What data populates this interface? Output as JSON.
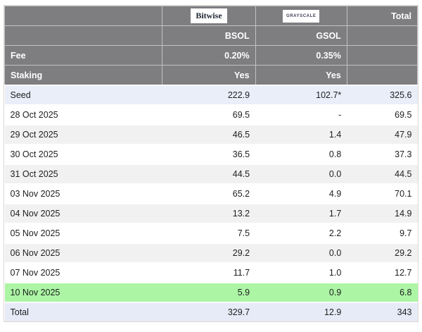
{
  "chart_data": {
    "type": "table",
    "total_column_label": "Total",
    "issuers": [
      {
        "name": "Bitwise",
        "ticker": "BSOL",
        "fee": "0.20%",
        "staking": "Yes"
      },
      {
        "name": "GRAYSCALE",
        "ticker": "GSOL",
        "fee": "0.35%",
        "staking": "Yes"
      }
    ],
    "meta_row_labels": {
      "fee": "Fee",
      "staking": "Staking"
    },
    "columns": [
      "",
      "BSOL",
      "GSOL",
      "Total"
    ],
    "rows": [
      {
        "label": "Seed",
        "bsol": "222.9",
        "gsol": "102.7*",
        "total": "325.6",
        "style": "seed"
      },
      {
        "label": "28 Oct 2025",
        "bsol": "69.5",
        "gsol": "-",
        "total": "69.5",
        "style": "white"
      },
      {
        "label": "29 Oct 2025",
        "bsol": "46.5",
        "gsol": "1.4",
        "total": "47.9",
        "style": "stripe"
      },
      {
        "label": "30 Oct 2025",
        "bsol": "36.5",
        "gsol": "0.8",
        "total": "37.3",
        "style": "white"
      },
      {
        "label": "31 Oct 2025",
        "bsol": "44.5",
        "gsol": "0.0",
        "total": "44.5",
        "style": "stripe"
      },
      {
        "label": "03 Nov 2025",
        "bsol": "65.2",
        "gsol": "4.9",
        "total": "70.1",
        "style": "white"
      },
      {
        "label": "04 Nov 2025",
        "bsol": "13.2",
        "gsol": "1.7",
        "total": "14.9",
        "style": "stripe"
      },
      {
        "label": "05 Nov 2025",
        "bsol": "7.5",
        "gsol": "2.2",
        "total": "9.7",
        "style": "white"
      },
      {
        "label": "06 Nov 2025",
        "bsol": "29.2",
        "gsol": "0.0",
        "total": "29.2",
        "style": "stripe"
      },
      {
        "label": "07 Nov 2025",
        "bsol": "11.7",
        "gsol": "1.0",
        "total": "12.7",
        "style": "white"
      },
      {
        "label": "10 Nov 2025",
        "bsol": "5.9",
        "gsol": "0.9",
        "total": "6.8",
        "style": "green"
      },
      {
        "label": "Total",
        "bsol": "329.7",
        "gsol": "12.9",
        "total": "343",
        "style": "total"
      }
    ]
  },
  "colors": {
    "header_bg": "#7e7e81",
    "header_text": "#ffffff",
    "seed_row_bg": "#e9eef9",
    "stripe_row_bg": "#f1f1f1",
    "green_row_bg": "#acf5a4",
    "total_row_bg": "#e7ebf7",
    "data_text": "#1e1e20",
    "outer_border": "#dcd8d2"
  }
}
